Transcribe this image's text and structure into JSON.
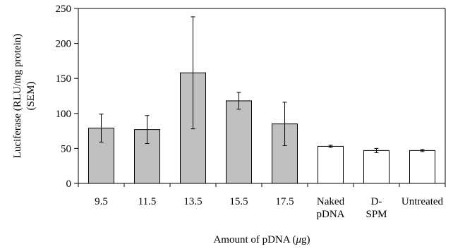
{
  "chart_data": {
    "type": "bar",
    "title": "",
    "xlabel": "Amount of pDNA (μg)",
    "ylabel": "Luciferase (RLU/mg protein) (SEM)",
    "ylabel_lines": [
      "Luciferase (RLU/mg protein)",
      "(SEM)"
    ],
    "xlabel_parts": {
      "before": "Amount of pDNA (",
      "symbol": "μ",
      "after": "g)"
    },
    "ylim": [
      0,
      250
    ],
    "yticks": [
      0,
      50,
      100,
      150,
      200,
      250
    ],
    "grid": false,
    "legend": "none",
    "categories": [
      "9.5",
      "11.5",
      "13.5",
      "15.5",
      "17.5",
      "Naked pDNA",
      "D-SPM",
      "Untreated"
    ],
    "category_labels": [
      [
        "9.5"
      ],
      [
        "11.5"
      ],
      [
        "13.5"
      ],
      [
        "15.5"
      ],
      [
        "17.5"
      ],
      [
        "Naked",
        "pDNA"
      ],
      [
        "D-",
        "SPM"
      ],
      [
        "Untreated"
      ]
    ],
    "values": [
      79,
      77,
      158,
      118,
      85,
      53,
      47,
      47
    ],
    "errors": [
      20,
      20,
      80,
      12,
      31,
      1.5,
      3,
      1.5
    ],
    "bar_fills": [
      "#c0c0c0",
      "#c0c0c0",
      "#c0c0c0",
      "#c0c0c0",
      "#c0c0c0",
      "#ffffff",
      "#ffffff",
      "#ffffff"
    ]
  }
}
